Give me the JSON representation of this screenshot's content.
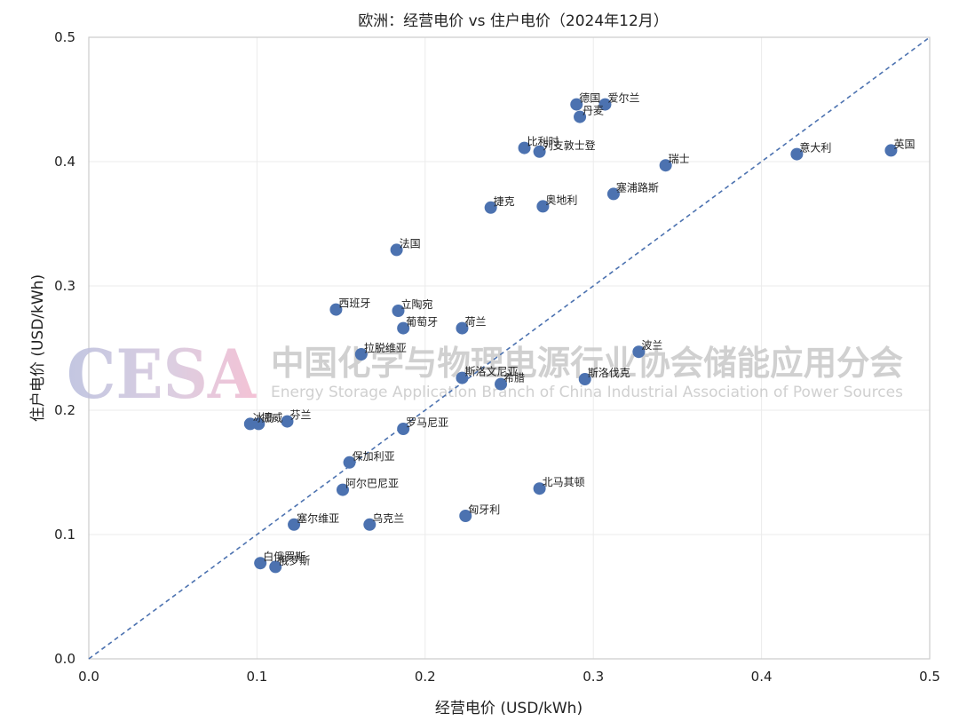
{
  "chart_data": {
    "type": "scatter",
    "title": "欧洲：经营电价 vs 住户电价（2024年12月）",
    "xlabel": "经营电价 (USD/kWh)",
    "ylabel": "住户电价 (USD/kWh)",
    "xlim": [
      0.0,
      0.5
    ],
    "ylim": [
      0.0,
      0.5
    ],
    "xticks": [
      "0.0",
      "0.1",
      "0.2",
      "0.3",
      "0.4",
      "0.5"
    ],
    "yticks": [
      "0.0",
      "0.1",
      "0.2",
      "0.3",
      "0.4",
      "0.5"
    ],
    "grid": true,
    "reference_line": "y = x",
    "point_color": "#4c72b0",
    "line_color": "#4c72b0",
    "points": [
      {
        "label": "英国",
        "x": 0.477,
        "y": 0.409
      },
      {
        "label": "意大利",
        "x": 0.421,
        "y": 0.406
      },
      {
        "label": "瑞士",
        "x": 0.343,
        "y": 0.397
      },
      {
        "label": "塞浦路斯",
        "x": 0.312,
        "y": 0.374
      },
      {
        "label": "德国",
        "x": 0.29,
        "y": 0.446
      },
      {
        "label": "爱尔兰",
        "x": 0.307,
        "y": 0.446
      },
      {
        "label": "丹麦",
        "x": 0.292,
        "y": 0.436
      },
      {
        "label": "比利时",
        "x": 0.259,
        "y": 0.411
      },
      {
        "label": "列支敦士登",
        "x": 0.268,
        "y": 0.408
      },
      {
        "label": "奥地利",
        "x": 0.27,
        "y": 0.364
      },
      {
        "label": "捷克",
        "x": 0.239,
        "y": 0.363
      },
      {
        "label": "法国",
        "x": 0.183,
        "y": 0.329
      },
      {
        "label": "西班牙",
        "x": 0.147,
        "y": 0.281
      },
      {
        "label": "立陶宛",
        "x": 0.184,
        "y": 0.28
      },
      {
        "label": "葡萄牙",
        "x": 0.187,
        "y": 0.266
      },
      {
        "label": "荷兰",
        "x": 0.222,
        "y": 0.266
      },
      {
        "label": "波兰",
        "x": 0.327,
        "y": 0.247
      },
      {
        "label": "拉脱维亚",
        "x": 0.162,
        "y": 0.245
      },
      {
        "label": "斯洛文尼亚",
        "x": 0.222,
        "y": 0.226
      },
      {
        "label": "希腊",
        "x": 0.245,
        "y": 0.221
      },
      {
        "label": "斯洛伐克",
        "x": 0.295,
        "y": 0.225
      },
      {
        "label": "冰岛",
        "x": 0.096,
        "y": 0.189
      },
      {
        "label": "挪威",
        "x": 0.101,
        "y": 0.189
      },
      {
        "label": "芬兰",
        "x": 0.118,
        "y": 0.191
      },
      {
        "label": "罗马尼亚",
        "x": 0.187,
        "y": 0.185
      },
      {
        "label": "保加利亚",
        "x": 0.155,
        "y": 0.158
      },
      {
        "label": "阿尔巴尼亚",
        "x": 0.151,
        "y": 0.136
      },
      {
        "label": "北马其顿",
        "x": 0.268,
        "y": 0.137
      },
      {
        "label": "匈牙利",
        "x": 0.224,
        "y": 0.115
      },
      {
        "label": "塞尔维亚",
        "x": 0.122,
        "y": 0.108
      },
      {
        "label": "乌克兰",
        "x": 0.167,
        "y": 0.108
      },
      {
        "label": "白俄罗斯",
        "x": 0.102,
        "y": 0.077
      },
      {
        "label": "俄罗斯",
        "x": 0.111,
        "y": 0.074
      }
    ]
  },
  "watermark": {
    "logo": "CESA",
    "chinese": "中国化学与物理电源行业协会储能应用分会",
    "english": "Energy Storage Application Branch of China Industrial Association of Power Sources"
  }
}
